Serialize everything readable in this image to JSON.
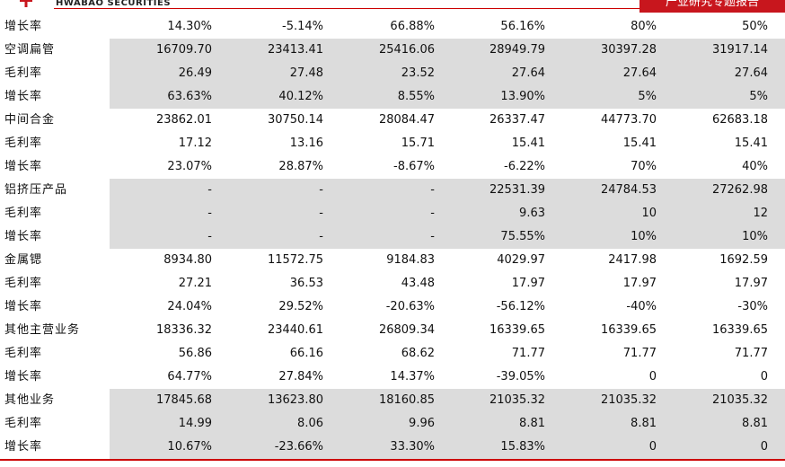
{
  "header": {
    "brand": "HWABAO SECURITIES",
    "tag": "产业研究专题报告"
  },
  "table": {
    "rows": [
      [
        "增长率",
        "14.30%",
        "-5.14%",
        "66.88%",
        "56.16%",
        "80%",
        "50%"
      ],
      [
        "空调扁管",
        "16709.70",
        "23413.41",
        "25416.06",
        "28949.79",
        "30397.28",
        "31917.14"
      ],
      [
        "毛利率",
        "26.49",
        "27.48",
        "23.52",
        "27.64",
        "27.64",
        "27.64"
      ],
      [
        "增长率",
        "63.63%",
        "40.12%",
        "8.55%",
        "13.90%",
        "5%",
        "5%"
      ],
      [
        "中间合金",
        "23862.01",
        "30750.14",
        "28084.47",
        "26337.47",
        "44773.70",
        "62683.18"
      ],
      [
        "毛利率",
        "17.12",
        "13.16",
        "15.71",
        "15.41",
        "15.41",
        "15.41"
      ],
      [
        "增长率",
        "23.07%",
        "28.87%",
        "-8.67%",
        "-6.22%",
        "70%",
        "40%"
      ],
      [
        "铝挤压产品",
        "-",
        "-",
        "-",
        "22531.39",
        "24784.53",
        "27262.98"
      ],
      [
        "毛利率",
        "-",
        "-",
        "-",
        "9.63",
        "10",
        "12"
      ],
      [
        "增长率",
        "-",
        "-",
        "-",
        "75.55%",
        "10%",
        "10%"
      ],
      [
        "金属锶",
        "8934.80",
        "11572.75",
        "9184.83",
        "4029.97",
        "2417.98",
        "1692.59"
      ],
      [
        "毛利率",
        "27.21",
        "36.53",
        "43.48",
        "17.97",
        "17.97",
        "17.97"
      ],
      [
        "增长率",
        "24.04%",
        "29.52%",
        "-20.63%",
        "-56.12%",
        "-40%",
        "-30%"
      ],
      [
        "其他主营业务",
        "18336.32",
        "23440.61",
        "26809.34",
        "16339.65",
        "16339.65",
        "16339.65"
      ],
      [
        "毛利率",
        "56.86",
        "66.16",
        "68.62",
        "71.77",
        "71.77",
        "71.77"
      ],
      [
        "增长率",
        "64.77%",
        "27.84%",
        "14.37%",
        "-39.05%",
        "0",
        "0"
      ],
      [
        "其他业务",
        "17845.68",
        "13623.80",
        "18160.85",
        "21035.32",
        "21035.32",
        "21035.32"
      ],
      [
        "毛利率",
        "14.99",
        "8.06",
        "9.96",
        "8.81",
        "8.81",
        "8.81"
      ],
      [
        "增长率",
        "10.67%",
        "-23.66%",
        "33.30%",
        "15.83%",
        "0",
        "0"
      ]
    ]
  }
}
